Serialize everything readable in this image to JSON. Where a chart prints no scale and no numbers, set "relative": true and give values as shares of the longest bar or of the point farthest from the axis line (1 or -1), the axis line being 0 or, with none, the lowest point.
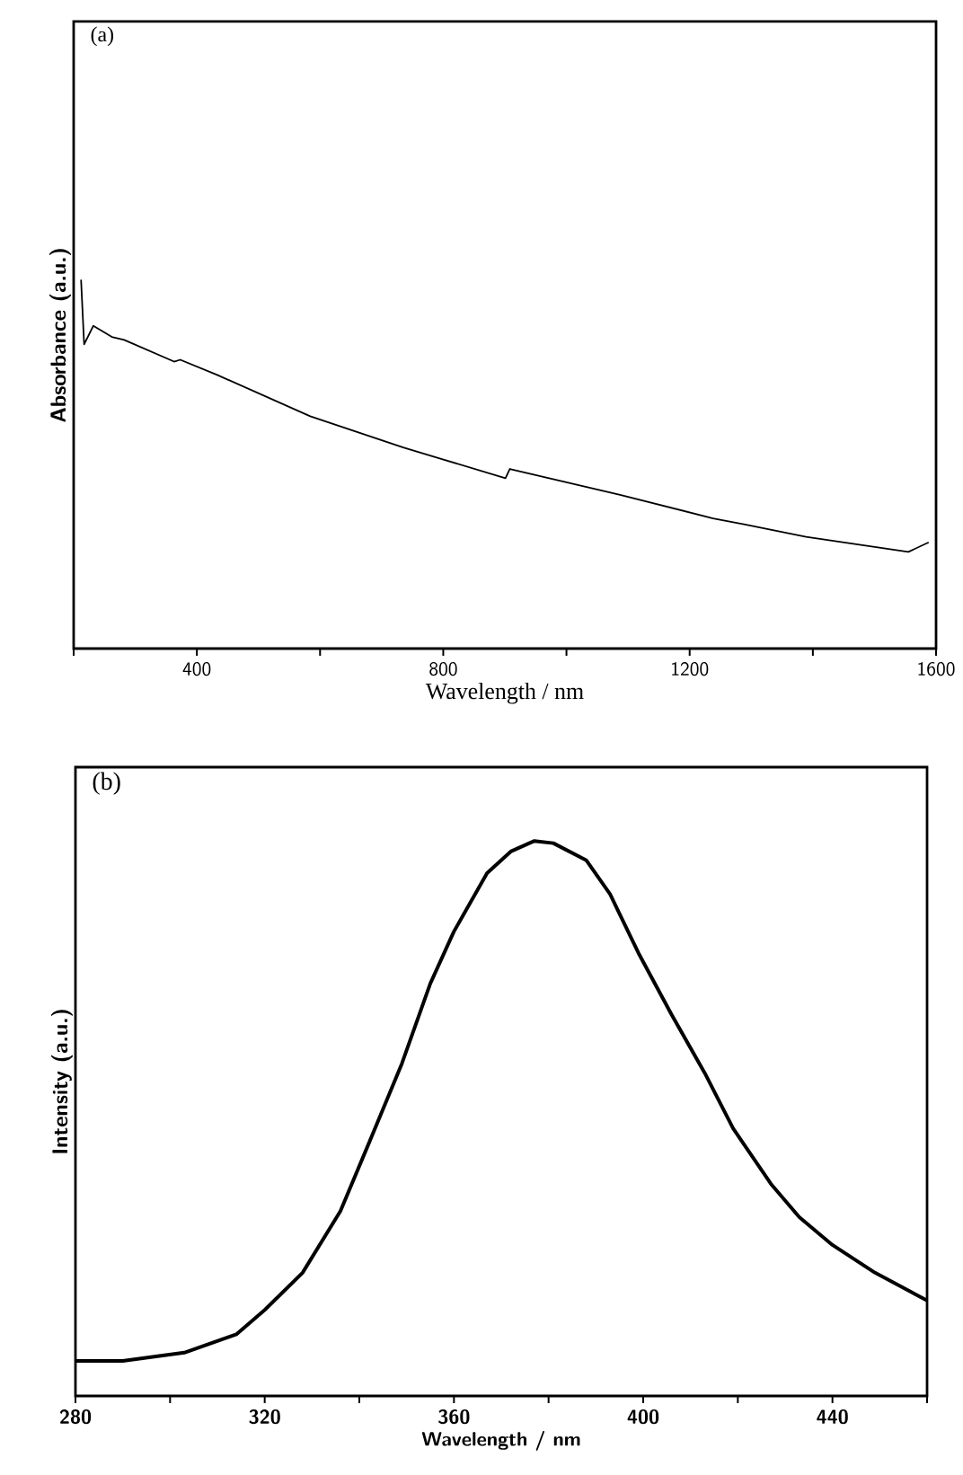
{
  "chart_data": [
    {
      "type": "line",
      "title": "(a)",
      "xlabel": "Wavelength / nm",
      "ylabel": "Absorbance (a.u.)",
      "relative": true,
      "color": "#000000",
      "x": [
        212,
        217,
        232,
        262,
        282,
        363,
        373,
        433,
        584,
        735,
        901,
        908,
        1087,
        1238,
        1288,
        1389,
        1555,
        1588
      ],
      "values": [
        1.0,
        0.825,
        0.875,
        0.845,
        0.837,
        0.778,
        0.783,
        0.742,
        0.63,
        0.545,
        0.462,
        0.487,
        0.417,
        0.353,
        0.337,
        0.303,
        0.262,
        0.288
      ],
      "xlim": [
        200,
        1600
      ],
      "xticks": [
        {
          "value": 200,
          "label": null
        },
        400,
        {
          "value": 600,
          "label": null
        },
        800,
        {
          "value": 1000,
          "label": null
        },
        1200,
        {
          "value": 1400,
          "label": null
        },
        1600
      ]
    },
    {
      "type": "line",
      "title": "(b)",
      "xlabel": "Wavelength / nm",
      "ylabel": "Intensity (a.u.)",
      "relative": true,
      "color": "#000000",
      "x": [
        280,
        290,
        303,
        314,
        320,
        328,
        336,
        342,
        349,
        355,
        360,
        367,
        372,
        377,
        381,
        388,
        393,
        399,
        406,
        413,
        419,
        427,
        433,
        440,
        449,
        460
      ],
      "values": [
        0.063,
        0.063,
        0.078,
        0.111,
        0.155,
        0.222,
        0.333,
        0.455,
        0.599,
        0.743,
        0.837,
        0.942,
        0.981,
        1.0,
        0.996,
        0.965,
        0.904,
        0.798,
        0.687,
        0.582,
        0.482,
        0.382,
        0.322,
        0.272,
        0.222,
        0.172
      ],
      "xlim": [
        280,
        460
      ],
      "xticks": [
        280,
        {
          "value": 300,
          "label": null
        },
        320,
        {
          "value": 340,
          "label": null
        },
        360,
        {
          "value": 380,
          "label": null
        },
        400,
        {
          "value": 420,
          "label": null
        },
        440,
        {
          "value": 460,
          "label": null
        }
      ]
    }
  ]
}
